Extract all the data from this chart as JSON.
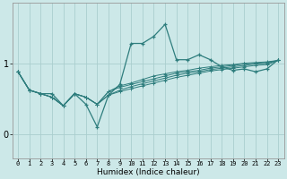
{
  "xlabel": "Humidex (Indice chaleur)",
  "ylabel": "",
  "background_color": "#cce8e8",
  "line_color": "#2e7d7d",
  "grid_color": "#aacece",
  "x_values": [
    0,
    1,
    2,
    3,
    4,
    5,
    6,
    7,
    8,
    9,
    10,
    11,
    12,
    13,
    14,
    15,
    16,
    17,
    18,
    19,
    20,
    21,
    22,
    23
  ],
  "lines": [
    [
      0.88,
      0.62,
      0.57,
      0.57,
      0.4,
      0.57,
      0.42,
      0.1,
      0.55,
      0.7,
      1.28,
      1.28,
      1.38,
      1.55,
      1.05,
      1.05,
      1.12,
      1.05,
      0.95,
      0.9,
      0.92,
      0.88,
      0.92,
      1.05
    ],
    [
      0.88,
      0.62,
      0.57,
      0.52,
      0.4,
      0.57,
      0.52,
      0.42,
      0.6,
      0.68,
      0.72,
      0.77,
      0.82,
      0.85,
      0.88,
      0.9,
      0.93,
      0.95,
      0.97,
      0.98,
      1.0,
      1.01,
      1.02,
      1.04
    ],
    [
      0.88,
      0.62,
      0.57,
      0.52,
      0.4,
      0.57,
      0.52,
      0.42,
      0.6,
      0.66,
      0.7,
      0.74,
      0.78,
      0.82,
      0.86,
      0.88,
      0.9,
      0.93,
      0.95,
      0.97,
      0.99,
      1.0,
      1.01,
      1.04
    ],
    [
      0.88,
      0.62,
      0.57,
      0.52,
      0.4,
      0.57,
      0.52,
      0.42,
      0.55,
      0.62,
      0.67,
      0.71,
      0.75,
      0.79,
      0.83,
      0.86,
      0.88,
      0.91,
      0.93,
      0.95,
      0.97,
      0.99,
      1.0,
      1.04
    ],
    [
      0.88,
      0.62,
      0.57,
      0.52,
      0.4,
      0.57,
      0.52,
      0.42,
      0.55,
      0.6,
      0.64,
      0.68,
      0.72,
      0.76,
      0.8,
      0.83,
      0.86,
      0.89,
      0.91,
      0.93,
      0.95,
      0.97,
      0.98,
      1.04
    ]
  ],
  "yticks": [
    0,
    1
  ],
  "ylim": [
    -0.35,
    1.85
  ],
  "xlim": [
    -0.5,
    23.5
  ],
  "xtick_labels": [
    "0",
    "1",
    "2",
    "3",
    "4",
    "5",
    "6",
    "7",
    "8",
    "9",
    "10",
    "11",
    "12",
    "13",
    "14",
    "15",
    "16",
    "17",
    "18",
    "19",
    "20",
    "21",
    "22",
    "23"
  ],
  "xlabel_fontsize": 6.5,
  "ytick_fontsize": 7,
  "xtick_fontsize": 5.0
}
